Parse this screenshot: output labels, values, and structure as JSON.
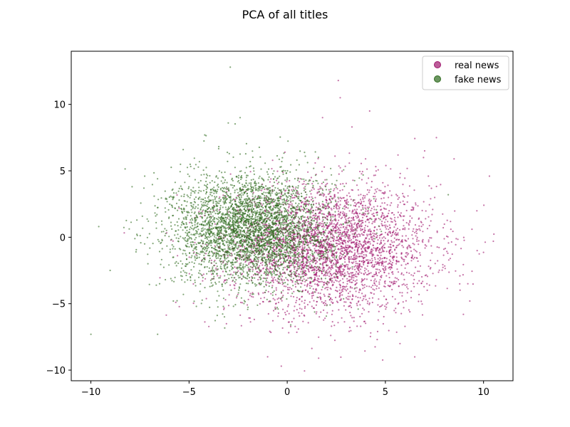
{
  "chart_data": {
    "type": "scatter",
    "title": "PCA of all titles",
    "xlabel": "",
    "ylabel": "",
    "xlim": [
      -11,
      11.5
    ],
    "ylim": [
      -10.8,
      14
    ],
    "xticks": [
      -10,
      -5,
      0,
      5,
      10
    ],
    "yticks": [
      -10,
      -5,
      0,
      5,
      10
    ],
    "xtick_labels": [
      "−10",
      "−5",
      "0",
      "5",
      "10"
    ],
    "ytick_labels": [
      "−10",
      "−5",
      "0",
      "5",
      "10"
    ],
    "grid": false,
    "legend_position": "top-right",
    "point_alpha": 0.6,
    "series": [
      {
        "name": "real news",
        "color": "#a0186e",
        "approx_count": 3500,
        "center": [
          2.2,
          -0.8
        ],
        "spread": [
          2.6,
          2.4
        ],
        "outliers": [
          [
            10.5,
            -0.3
          ],
          [
            10.3,
            4.6
          ],
          [
            9.2,
            -3.5
          ],
          [
            9.3,
            -4.8
          ],
          [
            -0.3,
            -9.7
          ],
          [
            3.3,
            8.3
          ],
          [
            4.2,
            9.5
          ],
          [
            1.8,
            9.0
          ],
          [
            2.6,
            11.8
          ],
          [
            2.7,
            10.5
          ],
          [
            7.6,
            7.5
          ],
          [
            8.5,
            5.9
          ],
          [
            7.0,
            6.5
          ],
          [
            -1.0,
            -9.0
          ],
          [
            1.6,
            -9.1
          ]
        ]
      },
      {
        "name": "fake news",
        "color": "#2e6b1e",
        "approx_count": 3800,
        "center": [
          -1.8,
          0.6
        ],
        "spread": [
          2.0,
          2.1
        ],
        "outliers": [
          [
            -10.0,
            -7.3
          ],
          [
            -9.6,
            0.8
          ],
          [
            -2.9,
            12.8
          ],
          [
            -7.9,
            3.8
          ],
          [
            -7.3,
            3.7
          ],
          [
            -6.5,
            -3.5
          ],
          [
            -6.6,
            -7.3
          ],
          [
            -5.3,
            6.6
          ],
          [
            -7.7,
            -1.1
          ],
          [
            -2.4,
            9.0
          ],
          [
            -3.0,
            8.6
          ],
          [
            8.2,
            3.2
          ],
          [
            -6.7,
            1.6
          ],
          [
            -4.2,
            7.7
          ],
          [
            -5.8,
            -4.8
          ]
        ]
      }
    ]
  }
}
